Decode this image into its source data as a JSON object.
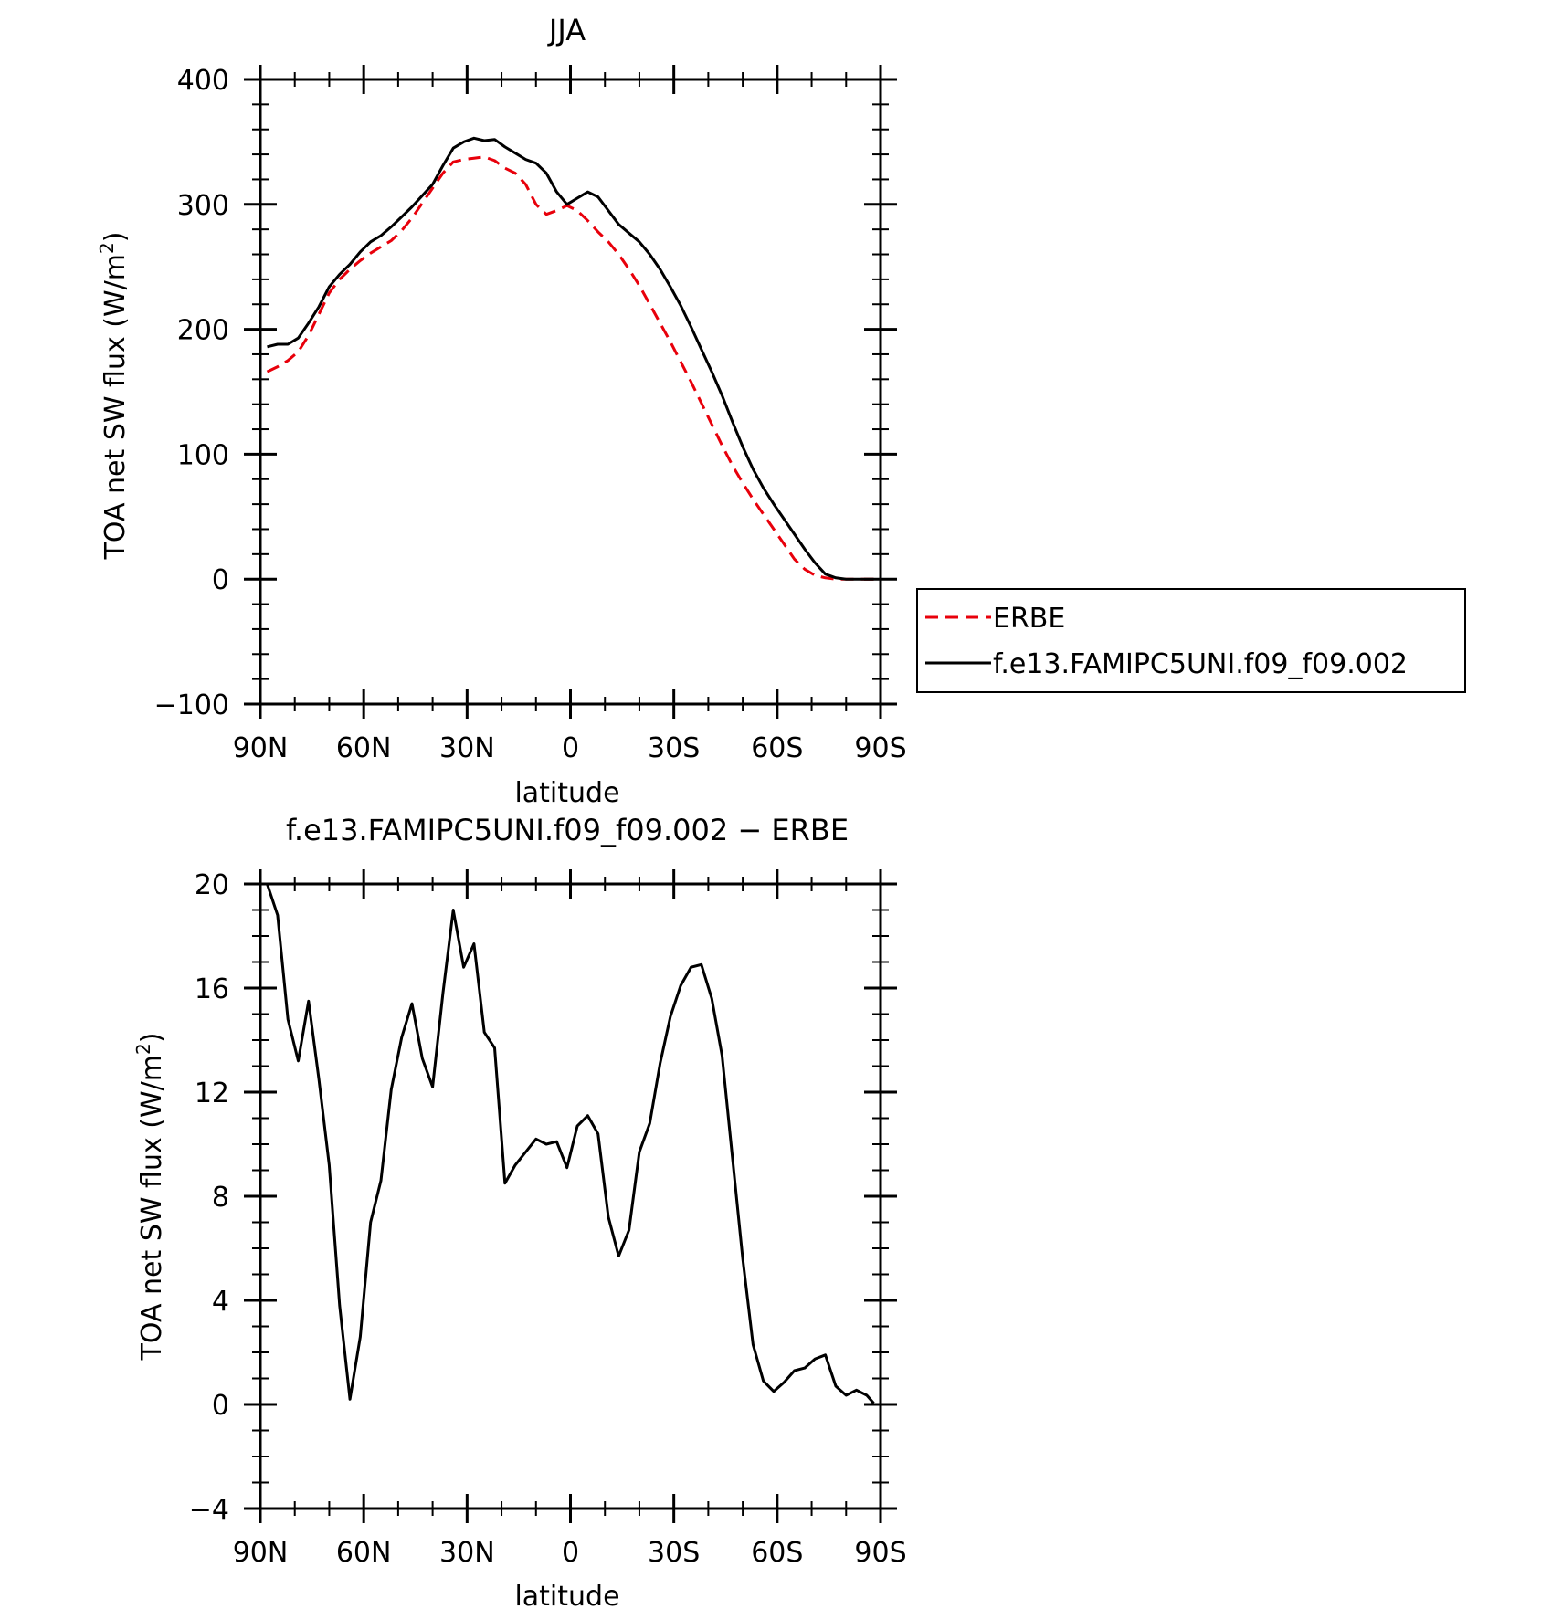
{
  "colors": {
    "erbe": "#e8000b",
    "model": "#000000",
    "axes": "#000000"
  },
  "chart_data": [
    {
      "type": "line",
      "title": "JJA",
      "xlabel": "latitude",
      "ylabel": "TOA net SW flux (W/m",
      "ylabel_sup": "2",
      "ylabel_close": ")",
      "xlim": [
        90,
        -90
      ],
      "ylim": [
        -100,
        400
      ],
      "xticks": [
        90,
        60,
        30,
        0,
        -30,
        -60,
        -90
      ],
      "xtick_labels": [
        "90N",
        "60N",
        "30N",
        "0",
        "30S",
        "60S",
        "90S"
      ],
      "yticks": [
        -100,
        0,
        100,
        200,
        300,
        400
      ],
      "ytick_labels": [
        "−100",
        "0",
        "100",
        "200",
        "300",
        "400"
      ],
      "grid": false,
      "legend_placement": "right",
      "x": [
        88,
        85,
        82,
        79,
        76,
        73,
        70,
        67,
        64,
        61,
        58,
        55,
        52,
        49,
        46,
        43,
        40,
        37,
        34,
        31,
        28,
        25,
        22,
        19,
        16,
        13,
        10,
        7,
        4,
        1,
        -2,
        -5,
        -8,
        -11,
        -14,
        -17,
        -20,
        -23,
        -26,
        -29,
        -32,
        -35,
        -38,
        -41,
        -44,
        -47,
        -50,
        -53,
        -56,
        -59,
        -62,
        -65,
        -68,
        -71,
        -74,
        -77,
        -80,
        -83,
        -86,
        -88
      ],
      "series": [
        {
          "name": "ERBE",
          "style": "dashed",
          "color_key": "erbe",
          "values": [
            166,
            170,
            175,
            182,
            195,
            212,
            229,
            240,
            248,
            255,
            261,
            266,
            271,
            279,
            289,
            301,
            313,
            325,
            334,
            336,
            337,
            338,
            335,
            329,
            325,
            316,
            300,
            292,
            295,
            299,
            295,
            287,
            278,
            270,
            260,
            248,
            235,
            220,
            205,
            190,
            174,
            158,
            141,
            124,
            107,
            91,
            77,
            64,
            52,
            40,
            28,
            16,
            8,
            3,
            1,
            0,
            0,
            0,
            0,
            0
          ]
        },
        {
          "name": "f.e13.FAMIPC5UNI.f09_f09.002",
          "style": "solid",
          "color_key": "model",
          "values": [
            186,
            188,
            188,
            193,
            205,
            218,
            234,
            244,
            252,
            262,
            270,
            275,
            282,
            290,
            298,
            307,
            316,
            331,
            345,
            350,
            353,
            351,
            352,
            346,
            341,
            336,
            333,
            325,
            310,
            300,
            305,
            310,
            306,
            295,
            284,
            277,
            270,
            260,
            248,
            234,
            219,
            202,
            184,
            166,
            147,
            126,
            106,
            88,
            73,
            60,
            48,
            36,
            24,
            13,
            4,
            1,
            0,
            0,
            0,
            0
          ]
        }
      ]
    },
    {
      "type": "line",
      "title": "f.e13.FAMIPC5UNI.f09_f09.002 − ERBE",
      "xlabel": "latitude",
      "ylabel": "TOA net SW flux (W/m",
      "ylabel_sup": "2",
      "ylabel_close": ")",
      "xlim": [
        90,
        -90
      ],
      "ylim": [
        -4,
        20
      ],
      "xticks": [
        90,
        60,
        30,
        0,
        -30,
        -60,
        -90
      ],
      "xtick_labels": [
        "90N",
        "60N",
        "30N",
        "0",
        "30S",
        "60S",
        "90S"
      ],
      "yticks": [
        -4,
        0,
        4,
        8,
        12,
        16,
        20
      ],
      "ytick_labels": [
        "−4",
        "0",
        "4",
        "8",
        "12",
        "16",
        "20"
      ],
      "grid": false,
      "x": [
        88,
        85,
        82,
        79,
        76,
        73,
        70,
        67,
        64,
        61,
        58,
        55,
        52,
        49,
        46,
        43,
        40,
        37,
        34,
        31,
        28,
        25,
        22,
        19,
        16,
        13,
        10,
        7,
        4,
        1,
        -2,
        -5,
        -8,
        -11,
        -14,
        -17,
        -20,
        -23,
        -26,
        -29,
        -32,
        -35,
        -38,
        -41,
        -44,
        -47,
        -50,
        -53,
        -56,
        -59,
        -62,
        -65,
        -68,
        -71,
        -74,
        -77,
        -80,
        -83,
        -86,
        -88
      ],
      "series": [
        {
          "color_key": "model",
          "values": [
            20,
            18.8,
            14.8,
            13.2,
            15.5,
            12.5,
            9.2,
            3.8,
            0.2,
            2.6,
            7,
            8.6,
            12.1,
            14.1,
            15.4,
            13.3,
            12.2,
            15.8,
            19,
            16.8,
            17.7,
            14.3,
            13.7,
            8.5,
            9.2,
            9.7,
            10.2,
            10,
            10.1,
            9.1,
            10.7,
            11.1,
            10.4,
            7.2,
            5.7,
            6.7,
            9.7,
            10.8,
            13.1,
            14.9,
            16.1,
            16.8,
            16.9,
            15.6,
            13.4,
            9.5,
            5.6,
            2.3,
            0.9,
            0.5,
            0.85,
            1.3,
            1.4,
            1.75,
            1.9,
            0.7,
            0.35,
            0.55,
            0.35,
            0.05
          ]
        }
      ]
    }
  ],
  "legend": {
    "items": [
      {
        "label": "ERBE",
        "style": "dashed",
        "color_key": "erbe"
      },
      {
        "label": "f.e13.FAMIPC5UNI.f09_f09.002",
        "style": "solid",
        "color_key": "model"
      }
    ]
  }
}
